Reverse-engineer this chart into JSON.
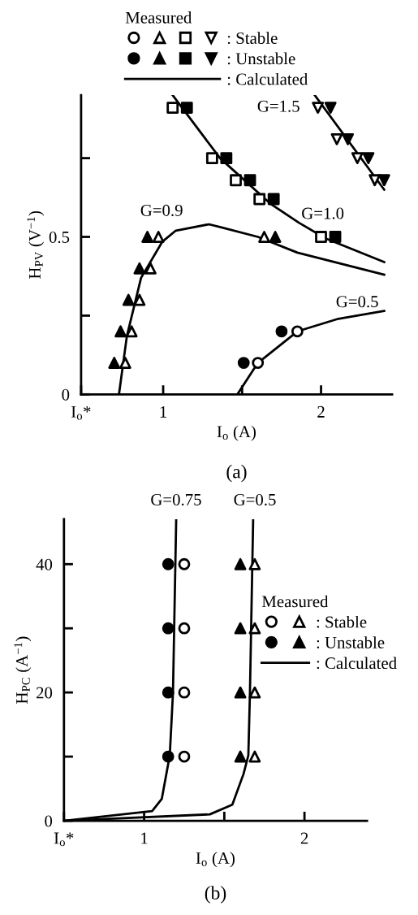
{
  "chart_data": [
    {
      "type": "scatter",
      "xlabel": "I$_{o}$ (A)",
      "ylabel": "H$_{PV}$ (V$^{−1}$)",
      "legend_title": "Measured",
      "legend": "top",
      "xlim": [
        0.48,
        2.45
      ],
      "ylim": [
        0,
        0.95
      ],
      "xticks": [
        {
          "value": 0.48,
          "label": "I$_{o}$*"
        },
        1,
        {
          "value": 1.5,
          "label": null
        },
        2
      ],
      "yticks": [
        0,
        {
          "value": 0.25,
          "label": null
        },
        0.5,
        {
          "value": 0.75,
          "label": null
        }
      ],
      "series": [
        {
          "marker": "circle",
          "color": "#ffffff",
          "x": [
            1.6,
            1.85
          ],
          "values": [
            0.1,
            0.2
          ]
        },
        {
          "marker": "triangle",
          "color": "#ffffff",
          "x": [
            0.76,
            0.8,
            0.85,
            0.92,
            0.97,
            1.64
          ],
          "values": [
            0.1,
            0.2,
            0.3,
            0.4,
            0.5,
            0.5
          ]
        },
        {
          "marker": "square",
          "color": "#ffffff",
          "x": [
            1.06,
            1.31,
            1.46,
            1.61,
            2.0
          ],
          "values": [
            0.91,
            0.75,
            0.68,
            0.62,
            0.5
          ]
        },
        {
          "name": ": Stable",
          "marker": "triangle_down",
          "color": "#ffffff",
          "x": [
            1.98,
            2.1,
            2.23,
            2.34
          ],
          "values": [
            0.91,
            0.81,
            0.75,
            0.68
          ]
        },
        {
          "marker": "circle",
          "color": "#000000",
          "x": [
            1.51,
            1.75
          ],
          "values": [
            0.1,
            0.2
          ]
        },
        {
          "marker": "triangle",
          "color": "#000000",
          "x": [
            0.69,
            0.73,
            0.78,
            0.85,
            0.9,
            1.71
          ],
          "values": [
            0.1,
            0.2,
            0.3,
            0.4,
            0.5,
            0.5
          ]
        },
        {
          "marker": "square",
          "color": "#000000",
          "x": [
            1.15,
            1.4,
            1.55,
            1.7,
            2.09
          ],
          "values": [
            0.91,
            0.75,
            0.68,
            0.62,
            0.5
          ]
        },
        {
          "name": ": Unstable",
          "marker": "triangle_down",
          "color": "#000000",
          "x": [
            2.06,
            2.17,
            2.3,
            2.4
          ],
          "values": [
            0.91,
            0.81,
            0.75,
            0.68
          ]
        },
        {
          "type": "line",
          "marker": "none",
          "color": "#000000",
          "x": [
            0.72,
            0.77,
            0.86,
            0.995,
            1.08,
            1.29,
            1.37,
            1.6,
            1.85,
            2.4
          ],
          "values": [
            0,
            0.185,
            0.37,
            0.485,
            0.52,
            0.54,
            0.53,
            0.5,
            0.45,
            0.38
          ]
        },
        {
          "type": "line",
          "marker": "none",
          "color": "#000000",
          "x": [
            1.47,
            1.6,
            1.85,
            2.11,
            2.4
          ],
          "values": [
            0,
            0.1,
            0.2,
            0.24,
            0.265
          ]
        },
        {
          "type": "line",
          "marker": "none",
          "color": "#000000",
          "x": [
            1.06,
            1.36,
            1.68,
            1.86,
            2.03,
            2.4
          ],
          "values": [
            0.95,
            0.75,
            0.605,
            0.545,
            0.495,
            0.42
          ]
        },
        {
          "name": ": Calculated",
          "type": "line",
          "marker": "none",
          "color": "#000000",
          "x": [
            1.96,
            2.4
          ],
          "values": [
            0.95,
            0.65
          ]
        }
      ],
      "annotations": [
        "G=0.9",
        "G=1.0",
        "G=0.5",
        "G=1.5",
        "(a)"
      ]
    },
    {
      "type": "scatter",
      "xlabel": "I$_{o}$ (A)",
      "ylabel": "H$_{PC}$ (A$^{−1}$)",
      "legend_title": "Measured",
      "legend": "right",
      "xlim": [
        0.5,
        2.39
      ],
      "ylim": [
        0,
        47
      ],
      "xticks": [
        {
          "value": 0.5,
          "label": "I$_{o}$*"
        },
        1,
        {
          "value": 1.5,
          "label": null
        },
        2
      ],
      "yticks": [
        0,
        {
          "value": 10,
          "label": null
        },
        20,
        {
          "value": 30,
          "label": null
        },
        40
      ],
      "series": [
        {
          "marker": "circle",
          "color": "#ffffff",
          "x": [
            1.25,
            1.25,
            1.25,
            1.25
          ],
          "values": [
            10,
            20,
            30,
            40
          ]
        },
        {
          "name": ": Stable",
          "marker": "triangle",
          "color": "#ffffff",
          "x": [
            1.69,
            1.69,
            1.69,
            1.69
          ],
          "values": [
            10,
            20,
            30,
            40
          ]
        },
        {
          "marker": "circle",
          "color": "#000000",
          "x": [
            1.15,
            1.15,
            1.15,
            1.15
          ],
          "values": [
            10,
            20,
            30,
            40
          ]
        },
        {
          "name": ": Unstable",
          "marker": "triangle",
          "color": "#000000",
          "x": [
            1.6,
            1.6,
            1.6,
            1.6
          ],
          "values": [
            10,
            20,
            30,
            40
          ]
        },
        {
          "name": ": Calculated",
          "type": "line",
          "marker": "none",
          "color": "#000000",
          "x": [
            0.5,
            1.05,
            1.11,
            1.16,
            1.18,
            1.2
          ],
          "values": [
            0,
            1.5,
            3.4,
            10.2,
            20,
            47
          ]
        },
        {
          "type": "line",
          "marker": "none",
          "color": "#000000",
          "x": [
            0.5,
            1.41,
            1.55,
            1.62,
            1.65,
            1.66,
            1.68
          ],
          "values": [
            0,
            1.0,
            2.5,
            7.3,
            10.2,
            20,
            47
          ]
        }
      ],
      "annotations": [
        "G=0.75",
        "G=0.5",
        "(b)"
      ]
    }
  ]
}
